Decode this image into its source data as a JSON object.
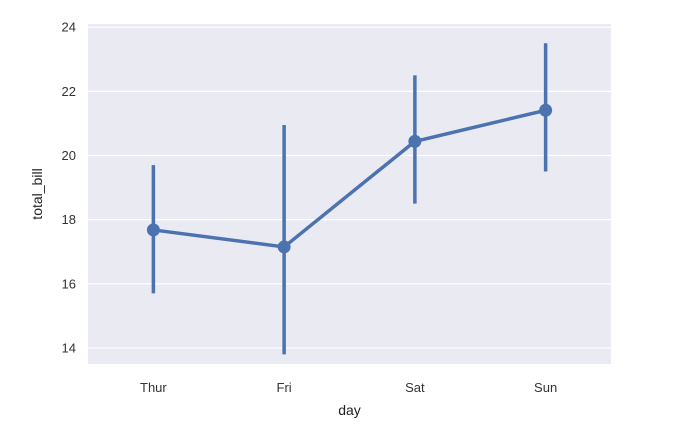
{
  "chart_data": {
    "type": "line",
    "xlabel": "day",
    "ylabel": "total_bill",
    "categories": [
      "Thur",
      "Fri",
      "Sat",
      "Sun"
    ],
    "series": [
      {
        "values": [
          17.68,
          17.15,
          20.44,
          21.41
        ],
        "ci_low": [
          15.7,
          13.8,
          18.5,
          19.5
        ],
        "ci_high": [
          19.7,
          20.95,
          22.5,
          23.5
        ]
      }
    ],
    "ylim": [
      13.5,
      24.1
    ],
    "yticks": [
      14,
      16,
      18,
      20,
      22,
      24
    ],
    "grid": true,
    "colors": {
      "series": "#4c72b0",
      "background": "#eaeaf2",
      "grid": "#ffffff"
    }
  }
}
